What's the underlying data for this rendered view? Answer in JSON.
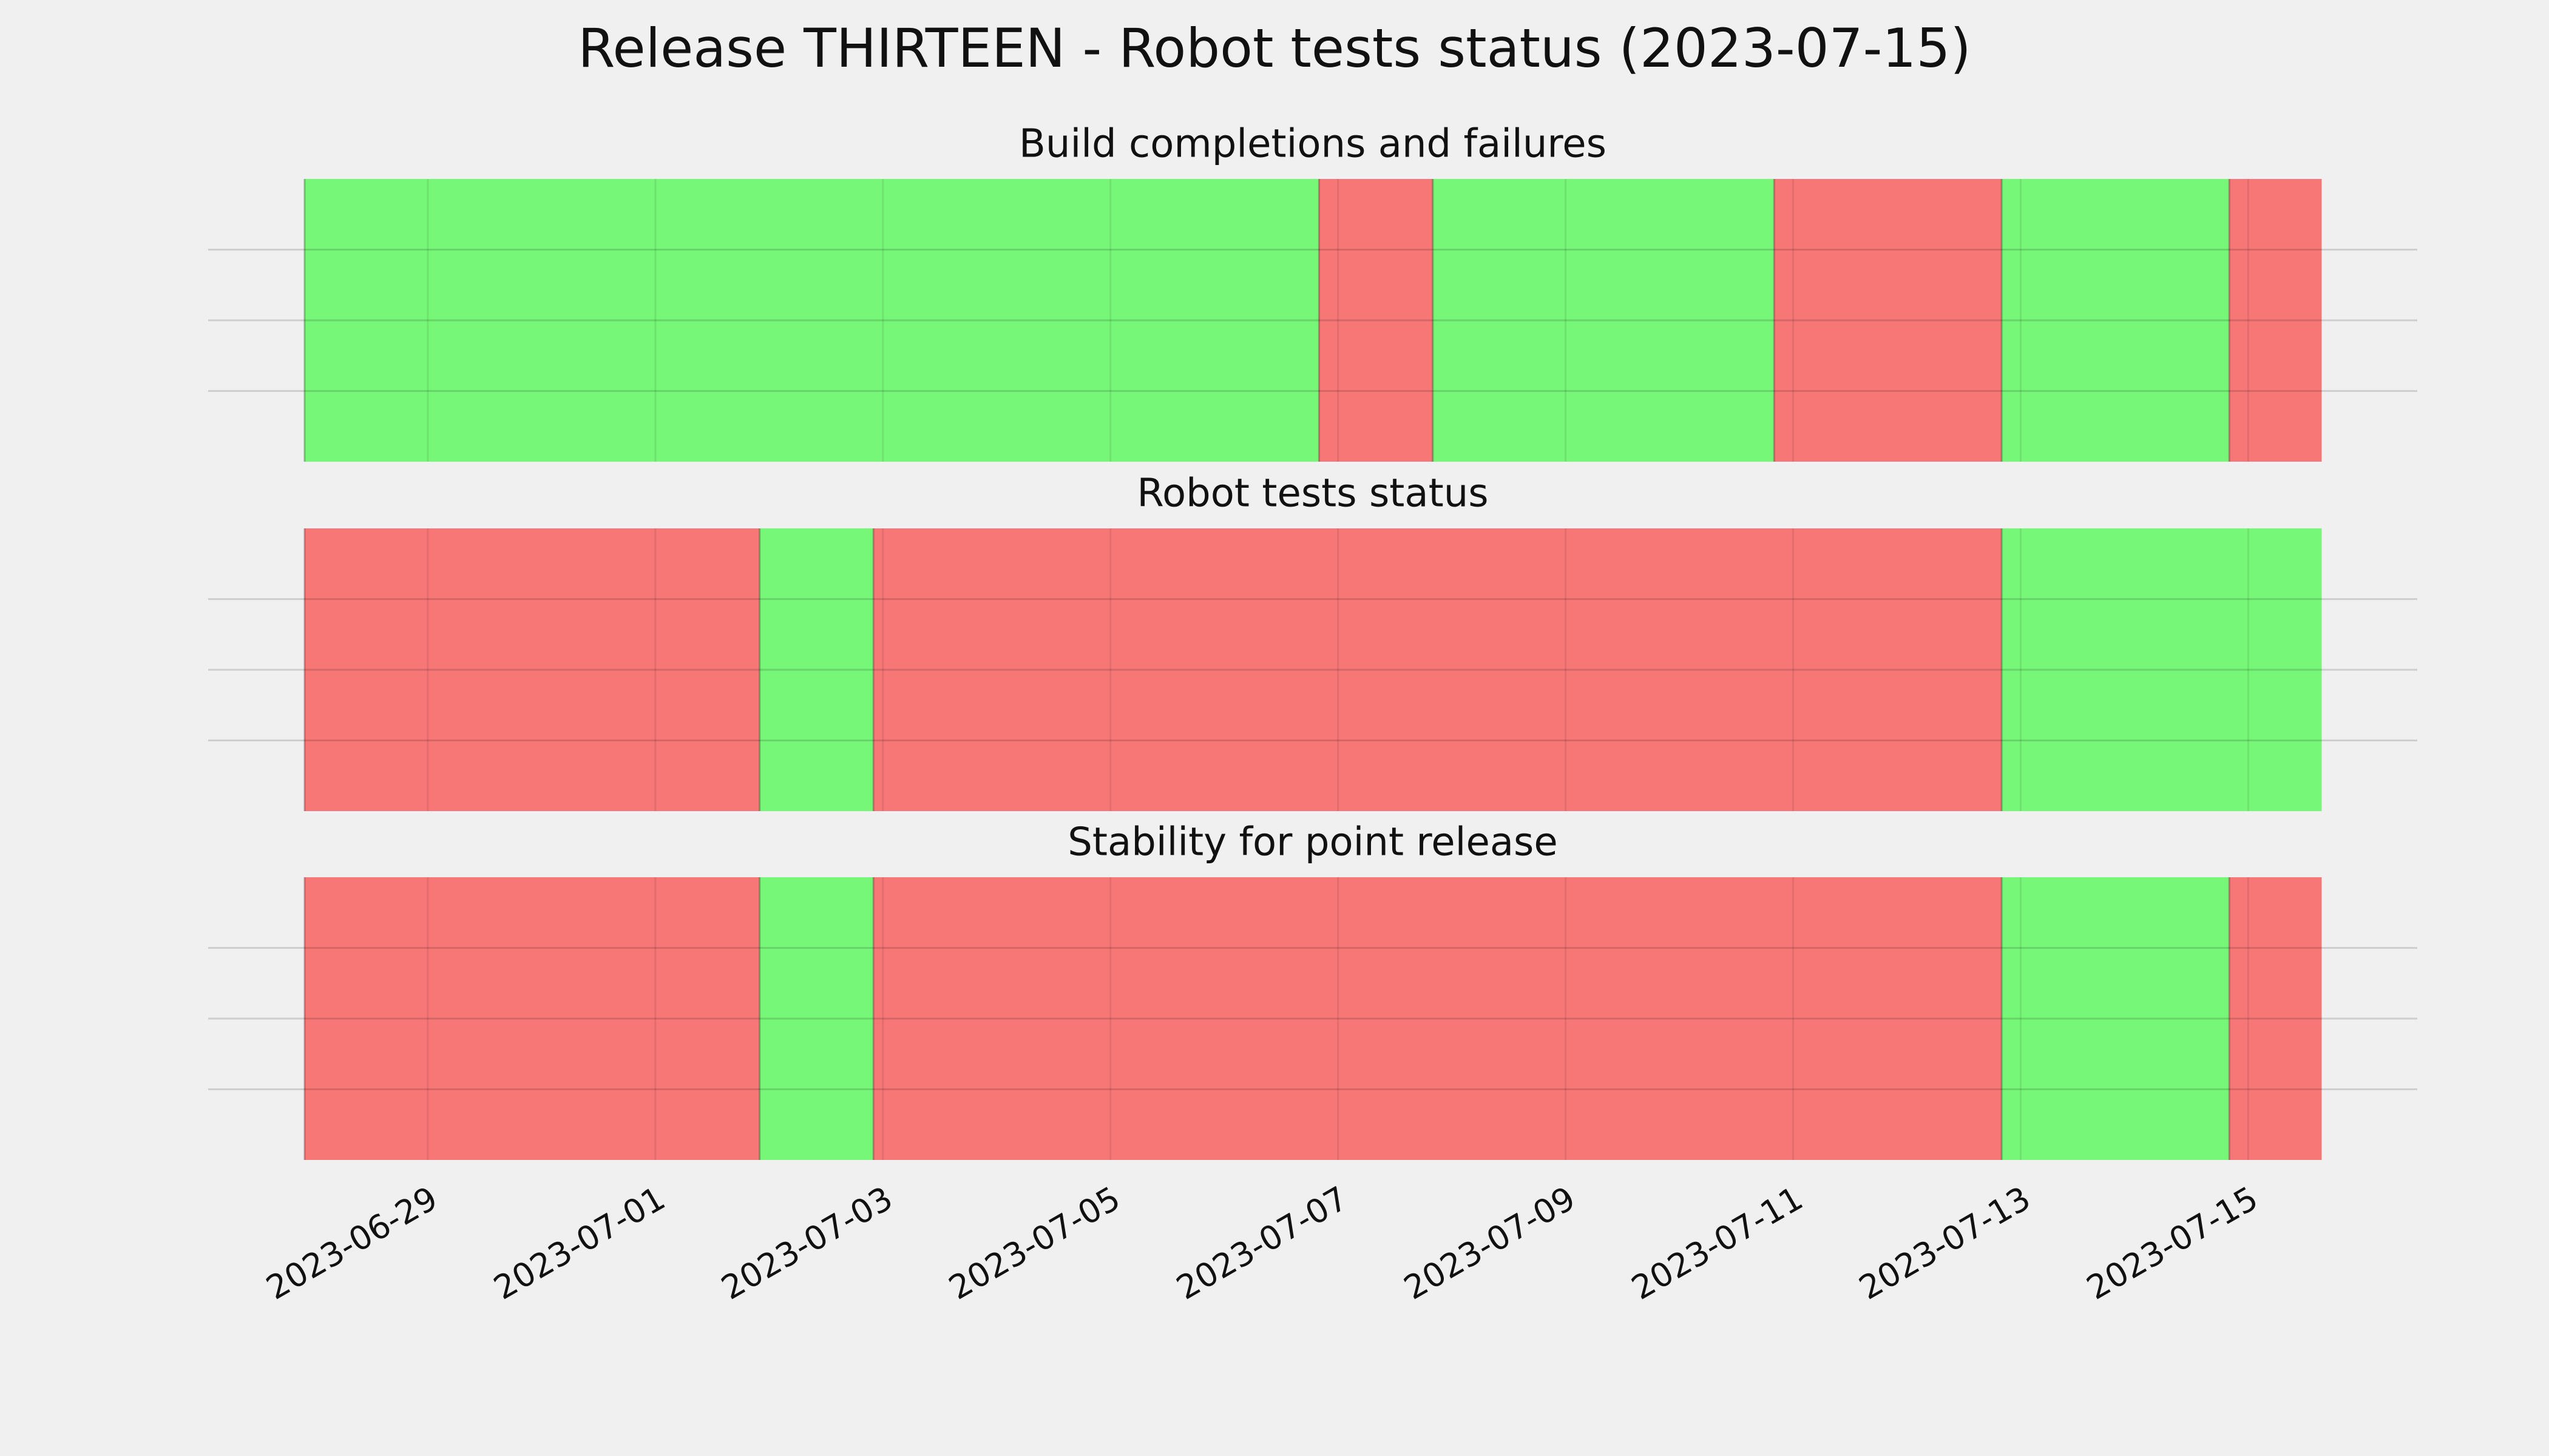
{
  "title": "Release THIRTEEN - Robot tests status (2023-07-15)",
  "chart_data": [
    {
      "type": "timeline",
      "title": "Build completions and failures",
      "xlim": [
        "2023-06-27T01:40",
        "2023-07-16T11:40"
      ],
      "xticks": [
        "2023-06-29",
        "2023-07-01",
        "2023-07-03",
        "2023-07-05",
        "2023-07-07",
        "2023-07-09",
        "2023-07-11",
        "2023-07-13",
        "2023-07-15"
      ],
      "ylim": [
        0,
        1
      ],
      "yticks": [
        0.25,
        0.5,
        0.75
      ],
      "grid": true,
      "segments": [
        {
          "start": "2023-06-27T22:00",
          "end": "2023-07-06T20:00",
          "color": "#77f777"
        },
        {
          "start": "2023-07-06T20:00",
          "end": "2023-07-07T20:00",
          "color": "#f77777"
        },
        {
          "start": "2023-07-07T20:00",
          "end": "2023-07-10T20:00",
          "color": "#77f777"
        },
        {
          "start": "2023-07-10T20:00",
          "end": "2023-07-12T20:00",
          "color": "#f77777"
        },
        {
          "start": "2023-07-12T20:00",
          "end": "2023-07-14T20:00",
          "color": "#77f777"
        },
        {
          "start": "2023-07-14T20:00",
          "end": "2023-07-15T15:30",
          "color": "#f77777"
        }
      ]
    },
    {
      "type": "timeline",
      "title": "Robot tests status",
      "xlim": [
        "2023-06-27T01:40",
        "2023-07-16T11:40"
      ],
      "xticks": [
        "2023-06-29",
        "2023-07-01",
        "2023-07-03",
        "2023-07-05",
        "2023-07-07",
        "2023-07-09",
        "2023-07-11",
        "2023-07-13",
        "2023-07-15"
      ],
      "ylim": [
        0,
        1
      ],
      "yticks": [
        0.25,
        0.5,
        0.75
      ],
      "grid": true,
      "segments": [
        {
          "start": "2023-06-27T22:00",
          "end": "2023-07-01T22:00",
          "color": "#f77777"
        },
        {
          "start": "2023-07-01T22:00",
          "end": "2023-07-02T22:00",
          "color": "#77f777"
        },
        {
          "start": "2023-07-02T22:00",
          "end": "2023-07-12T20:00",
          "color": "#f77777"
        },
        {
          "start": "2023-07-12T20:00",
          "end": "2023-07-15T15:30",
          "color": "#77f777"
        }
      ]
    },
    {
      "type": "timeline",
      "title": "Stability for point release",
      "xlim": [
        "2023-06-27T01:40",
        "2023-07-16T11:40"
      ],
      "xticks": [
        "2023-06-29",
        "2023-07-01",
        "2023-07-03",
        "2023-07-05",
        "2023-07-07",
        "2023-07-09",
        "2023-07-11",
        "2023-07-13",
        "2023-07-15"
      ],
      "ylim": [
        0,
        1
      ],
      "yticks": [
        0.25,
        0.5,
        0.75
      ],
      "grid": true,
      "segments": [
        {
          "start": "2023-06-27T22:00",
          "end": "2023-07-01T22:00",
          "color": "#f77777"
        },
        {
          "start": "2023-07-01T22:00",
          "end": "2023-07-02T22:00",
          "color": "#77f777"
        },
        {
          "start": "2023-07-02T22:00",
          "end": "2023-07-12T20:00",
          "color": "#f77777"
        },
        {
          "start": "2023-07-12T20:00",
          "end": "2023-07-14T20:00",
          "color": "#77f777"
        },
        {
          "start": "2023-07-14T20:00",
          "end": "2023-07-15T15:30",
          "color": "#f77777"
        }
      ]
    }
  ]
}
